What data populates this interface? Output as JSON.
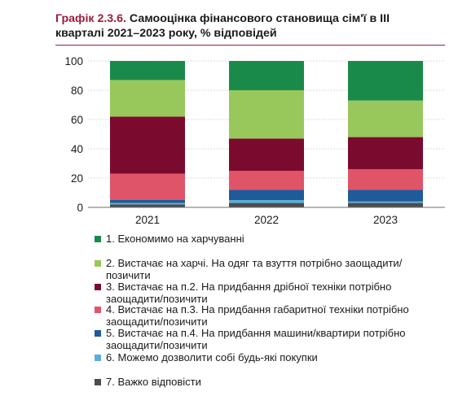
{
  "header": {
    "title_num": "Графік 2.3.6.",
    "title_rest": " Самооцінка фінансового становища сім'ї в ІІІ кварталі 2021–2023 року, % відповідей"
  },
  "chart_data": {
    "type": "bar",
    "stacked": true,
    "categories": [
      "2021",
      "2022",
      "2023"
    ],
    "ylim": [
      0,
      100
    ],
    "yticks": [
      0,
      20,
      40,
      60,
      80,
      100
    ],
    "grid": "horizontal",
    "legend_position": "bottom",
    "title": "",
    "xlabel": "",
    "ylabel": "",
    "series": [
      {
        "name": "7. Важко відповісти",
        "color": "#4d4d4d",
        "values": [
          2,
          3,
          3
        ]
      },
      {
        "name": "6. Можемо дозволити собі будь-які покупки",
        "color": "#5aaed8",
        "values": [
          1,
          2,
          1
        ]
      },
      {
        "name": "5. Вистачає на п.4. На придбання машини/квартири потрібно заощадити/позичити",
        "color": "#1f5a99",
        "values": [
          2,
          7,
          8
        ]
      },
      {
        "name": "4. Вистачає на п.3. На придбання габаритної техніки потрібно заощадити/позичити",
        "color": "#e05468",
        "values": [
          18,
          13,
          14
        ]
      },
      {
        "name": "3. Вистачає на п.2. На придбання дрібної техніки потрібно заощадити/позичити",
        "color": "#7b0b2e",
        "values": [
          39,
          22,
          22
        ]
      },
      {
        "name": "2. Вистачає на харчі. На одяг та взуття потрібно заощадити/позичити",
        "color": "#98c85c",
        "values": [
          25,
          33,
          25
        ]
      },
      {
        "name": "1. Економимо на харчуванні",
        "color": "#1a8a4a",
        "values": [
          13,
          20,
          27
        ]
      }
    ]
  }
}
